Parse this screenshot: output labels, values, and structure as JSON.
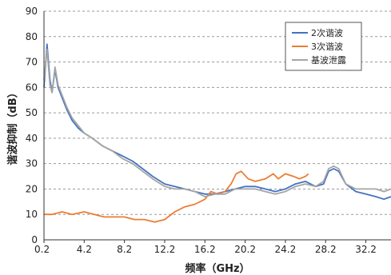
{
  "chart_data": {
    "type": "line",
    "title": "",
    "xlabel": "频率（GHz）",
    "ylabel": "谐波抑制（dB）",
    "xlim": [
      0.2,
      34.7
    ],
    "ylim": [
      0,
      90
    ],
    "xticks": [
      0.2,
      4.2,
      8.2,
      12.2,
      16.2,
      20.2,
      24.2,
      28.2,
      32.2
    ],
    "xtick_labels": [
      "0.2",
      "4.2",
      "8.2",
      "12.2",
      "16.2",
      "20.2",
      "24.2",
      "28.2",
      "32.2"
    ],
    "yticks": [
      0,
      10,
      20,
      30,
      40,
      50,
      60,
      70,
      80,
      90
    ],
    "ytick_labels": [
      "0",
      "10",
      "20",
      "30",
      "40",
      "50",
      "60",
      "70",
      "80",
      "90"
    ],
    "grid": "horizontal dashed",
    "legend_position": "top-right",
    "series": [
      {
        "name": "2次谐波",
        "color": "#4472C4",
        "points": [
          [
            0.2,
            60
          ],
          [
            0.5,
            77
          ],
          [
            0.8,
            63
          ],
          [
            1.0,
            58
          ],
          [
            1.3,
            67
          ],
          [
            1.6,
            60
          ],
          [
            2.0,
            56
          ],
          [
            2.5,
            51
          ],
          [
            3.0,
            47
          ],
          [
            3.6,
            44
          ],
          [
            4.2,
            42
          ],
          [
            5.0,
            40
          ],
          [
            6.0,
            37
          ],
          [
            7.0,
            35
          ],
          [
            8.0,
            33
          ],
          [
            9.0,
            31
          ],
          [
            10.0,
            28
          ],
          [
            11.0,
            25
          ],
          [
            12.2,
            22
          ],
          [
            13.2,
            21
          ],
          [
            14.2,
            20
          ],
          [
            15.2,
            19
          ],
          [
            16.2,
            18
          ],
          [
            17.2,
            18
          ],
          [
            18.2,
            19
          ],
          [
            19.2,
            20
          ],
          [
            20.2,
            21
          ],
          [
            21.2,
            21
          ],
          [
            22.2,
            20
          ],
          [
            23.2,
            19
          ],
          [
            24.2,
            20
          ],
          [
            25.2,
            22
          ],
          [
            26.2,
            23
          ],
          [
            27.2,
            21
          ],
          [
            28.0,
            22
          ],
          [
            28.5,
            27
          ],
          [
            29.0,
            28
          ],
          [
            29.5,
            27
          ],
          [
            30.2,
            22
          ],
          [
            31.2,
            19
          ],
          [
            32.2,
            18
          ],
          [
            33.2,
            17
          ],
          [
            34.0,
            16
          ],
          [
            34.7,
            17
          ]
        ]
      },
      {
        "name": "3次谐波",
        "color": "#ED7D31",
        "points": [
          [
            0.2,
            10
          ],
          [
            1.0,
            10
          ],
          [
            2.0,
            11
          ],
          [
            3.0,
            10
          ],
          [
            4.2,
            11
          ],
          [
            5.2,
            10
          ],
          [
            6.2,
            9
          ],
          [
            7.2,
            9
          ],
          [
            8.2,
            9
          ],
          [
            9.2,
            8
          ],
          [
            10.2,
            8
          ],
          [
            11.2,
            7
          ],
          [
            12.2,
            8
          ],
          [
            13.2,
            11
          ],
          [
            14.2,
            13
          ],
          [
            15.2,
            14
          ],
          [
            16.2,
            16
          ],
          [
            16.8,
            19
          ],
          [
            17.5,
            18
          ],
          [
            18.2,
            19
          ],
          [
            18.8,
            22
          ],
          [
            19.3,
            26
          ],
          [
            19.8,
            27
          ],
          [
            20.5,
            24
          ],
          [
            21.2,
            23
          ],
          [
            22.2,
            24
          ],
          [
            23.0,
            26
          ],
          [
            23.5,
            24
          ],
          [
            24.2,
            26
          ],
          [
            25.0,
            25
          ],
          [
            25.6,
            24
          ],
          [
            26.2,
            25
          ],
          [
            26.5,
            26
          ]
        ]
      },
      {
        "name": "基波泄露",
        "color": "#A5A5A5",
        "points": [
          [
            0.2,
            63
          ],
          [
            0.5,
            75
          ],
          [
            0.8,
            61
          ],
          [
            1.0,
            58
          ],
          [
            1.3,
            68
          ],
          [
            1.6,
            61
          ],
          [
            2.0,
            57
          ],
          [
            2.5,
            52
          ],
          [
            3.0,
            48
          ],
          [
            3.6,
            45
          ],
          [
            4.2,
            42
          ],
          [
            5.0,
            40
          ],
          [
            6.0,
            37
          ],
          [
            7.0,
            35
          ],
          [
            8.0,
            32
          ],
          [
            9.0,
            30
          ],
          [
            10.0,
            27
          ],
          [
            11.0,
            24
          ],
          [
            12.2,
            21
          ],
          [
            13.2,
            20
          ],
          [
            14.2,
            20
          ],
          [
            15.2,
            19
          ],
          [
            16.2,
            17
          ],
          [
            17.2,
            18
          ],
          [
            18.2,
            18
          ],
          [
            19.2,
            20
          ],
          [
            20.2,
            20
          ],
          [
            21.2,
            20
          ],
          [
            22.2,
            19
          ],
          [
            23.2,
            18
          ],
          [
            24.2,
            19
          ],
          [
            25.2,
            21
          ],
          [
            26.2,
            22
          ],
          [
            27.2,
            21
          ],
          [
            28.0,
            23
          ],
          [
            28.5,
            28
          ],
          [
            29.0,
            29
          ],
          [
            29.5,
            28
          ],
          [
            30.2,
            22
          ],
          [
            31.2,
            20
          ],
          [
            32.2,
            20
          ],
          [
            33.2,
            20
          ],
          [
            34.0,
            19
          ],
          [
            34.7,
            20
          ]
        ]
      }
    ]
  }
}
